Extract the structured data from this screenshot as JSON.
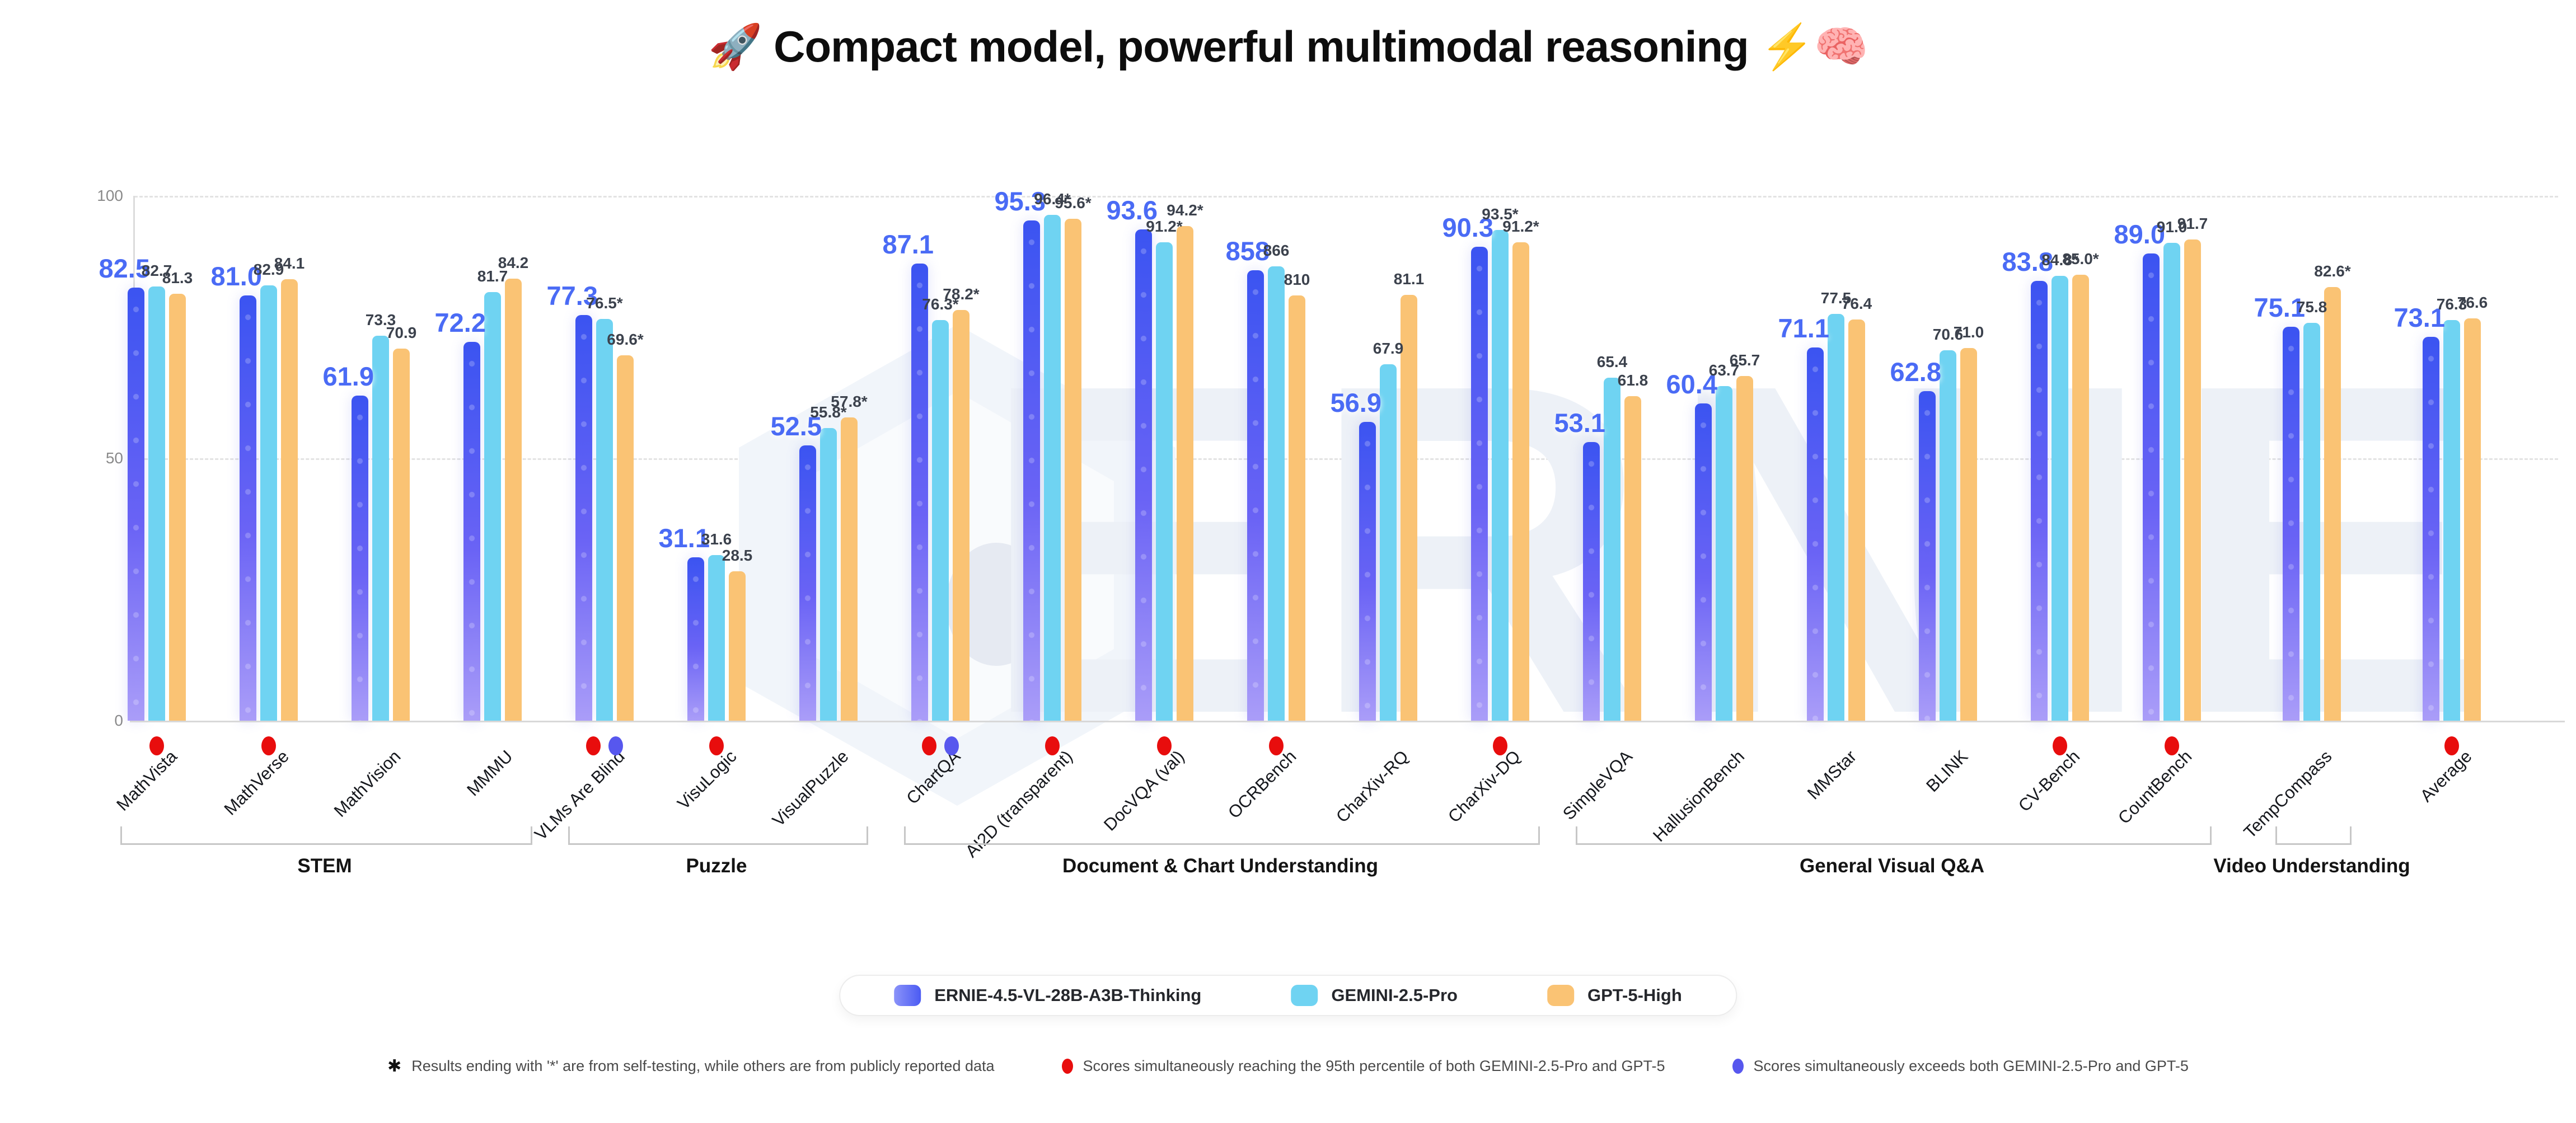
{
  "title": "🚀 Compact model, powerful multimodal reasoning ⚡🧠",
  "watermark": "ERNIE",
  "y_axis": {
    "ticks": [
      "100",
      "50",
      "0"
    ]
  },
  "colors": {
    "ernie_top": "#3B54F1",
    "ernie_bottom": "#AA9DF8",
    "gemini": "#6FD3F2",
    "gpt": "#FAC374",
    "ernie_label": "#4A6BF5",
    "value_label": "#3C424D",
    "marker_red": "#E80D0D",
    "marker_blue": "#5757EE"
  },
  "legend": {
    "items": [
      {
        "label": "ERNIE-4.5-VL-28B-A3B-Thinking",
        "swatch": "ernie-gradient"
      },
      {
        "label": "GEMINI-2.5-Pro",
        "swatch": "#6FD3F2"
      },
      {
        "label": "GPT-5-High",
        "swatch": "#FAC374"
      }
    ]
  },
  "footnotes": [
    {
      "symbol": "asterisk",
      "text": "Results ending with '*' are from self-testing, while others are from publicly reported data"
    },
    {
      "symbol": "red-dot",
      "text": "Scores simultaneously reaching the 95th percentile of both GEMINI-2.5-Pro and GPT-5"
    },
    {
      "symbol": "blue-dot",
      "text": "Scores simultaneously exceeds both GEMINI-2.5-Pro and GPT-5"
    }
  ],
  "chart_data": {
    "type": "bar",
    "title": "🚀 Compact model, powerful multimodal reasoning ⚡🧠",
    "ylabel": "",
    "xlabel": "",
    "ylim": [
      0,
      100
    ],
    "yticks": [
      0,
      50,
      100
    ],
    "grid": "horizontal dashed at 50 and 100",
    "legend_position": "bottom-center",
    "series_names": [
      "ERNIE-4.5-VL-28B-A3B-Thinking",
      "GEMINI-2.5-Pro",
      "GPT-5-High"
    ],
    "marker_legend": {
      "red": "95th percentile of both GEMINI-2.5-Pro and GPT-5",
      "blue": "exceeds both GEMINI-2.5-Pro and GPT-5"
    },
    "groups": [
      {
        "label": "STEM",
        "items": [
          {
            "benchmark": "MathVista",
            "values": [
              "82.5",
              "82.7",
              "81.3"
            ],
            "heights": [
              82.5,
              82.7,
              81.3
            ],
            "markers": [
              "red"
            ]
          },
          {
            "benchmark": "MathVerse",
            "values": [
              "81.0",
              "82.9",
              "84.1"
            ],
            "heights": [
              81.0,
              82.9,
              84.1
            ],
            "markers": [
              "red"
            ]
          },
          {
            "benchmark": "MathVision",
            "values": [
              "61.9",
              "73.3",
              "70.9"
            ],
            "heights": [
              61.9,
              73.3,
              70.9
            ],
            "markers": []
          },
          {
            "benchmark": "MMMU",
            "values": [
              "72.2",
              "81.7",
              "84.2"
            ],
            "heights": [
              72.2,
              81.7,
              84.2
            ],
            "markers": []
          }
        ]
      },
      {
        "label": "Puzzle",
        "items": [
          {
            "benchmark": "VLMs Are Blind",
            "values": [
              "77.3",
              "76.5*",
              "69.6*"
            ],
            "heights": [
              77.3,
              76.5,
              69.6
            ],
            "markers": [
              "red",
              "blue"
            ]
          },
          {
            "benchmark": "VisuLogic",
            "values": [
              "31.1",
              "31.6",
              "28.5"
            ],
            "heights": [
              31.1,
              31.6,
              28.5
            ],
            "markers": [
              "red"
            ]
          },
          {
            "benchmark": "VisualPuzzle",
            "values": [
              "52.5",
              "55.8*",
              "57.8*"
            ],
            "heights": [
              52.5,
              55.8,
              57.8
            ],
            "markers": []
          }
        ]
      },
      {
        "label": "Document & Chart Understanding",
        "items": [
          {
            "benchmark": "ChartQA",
            "values": [
              "87.1",
              "76.3*",
              "78.2*"
            ],
            "heights": [
              87.1,
              76.3,
              78.2
            ],
            "markers": [
              "red",
              "blue"
            ]
          },
          {
            "benchmark": "AI2D (transparent)",
            "values": [
              "95.3",
              "96.4*",
              "95.6*"
            ],
            "heights": [
              95.3,
              96.4,
              95.6
            ],
            "markers": [
              "red"
            ]
          },
          {
            "benchmark": "DocVQA (val)",
            "values": [
              "93.6",
              "91.2*",
              "94.2*"
            ],
            "heights": [
              93.6,
              91.2,
              94.2
            ],
            "markers": [
              "red"
            ]
          },
          {
            "benchmark": "OCRBench",
            "values": [
              "858",
              "866",
              "810"
            ],
            "heights": [
              85.8,
              86.6,
              81.0
            ],
            "markers": [
              "red"
            ]
          },
          {
            "benchmark": "CharXiv-RQ",
            "values": [
              "56.9",
              "67.9",
              "81.1"
            ],
            "heights": [
              56.9,
              67.9,
              81.1
            ],
            "markers": []
          },
          {
            "benchmark": "CharXiv-DQ",
            "values": [
              "90.3",
              "93.5*",
              "91.2*"
            ],
            "heights": [
              90.3,
              93.5,
              91.2
            ],
            "markers": [
              "red"
            ]
          }
        ]
      },
      {
        "label": "General Visual Q&A",
        "items": [
          {
            "benchmark": "SimpleVQA",
            "values": [
              "53.1",
              "65.4",
              "61.8"
            ],
            "heights": [
              53.1,
              65.4,
              61.8
            ],
            "markers": []
          },
          {
            "benchmark": "HallusionBench",
            "values": [
              "60.4",
              "63.7",
              "65.7"
            ],
            "heights": [
              60.4,
              63.7,
              65.7
            ],
            "markers": []
          },
          {
            "benchmark": "MMStar",
            "values": [
              "71.1",
              "77.5",
              "76.4"
            ],
            "heights": [
              71.1,
              77.5,
              76.4
            ],
            "markers": []
          },
          {
            "benchmark": "BLINK",
            "values": [
              "62.8",
              "70.6",
              "71.0"
            ],
            "heights": [
              62.8,
              70.6,
              71.0
            ],
            "markers": []
          },
          {
            "benchmark": "CV-Bench",
            "values": [
              "83.8",
              "84.8*",
              "85.0*"
            ],
            "heights": [
              83.8,
              84.8,
              85.0
            ],
            "markers": [
              "red"
            ]
          },
          {
            "benchmark": "CountBench",
            "values": [
              "89.0",
              "91.0",
              "91.7"
            ],
            "heights": [
              89.0,
              91.0,
              91.7
            ],
            "markers": [
              "red"
            ]
          }
        ]
      },
      {
        "label": "Video Understanding",
        "items": [
          {
            "benchmark": "TempCompass",
            "values": [
              "75.1",
              "75.8",
              "82.6*"
            ],
            "heights": [
              75.1,
              75.8,
              82.6
            ],
            "markers": []
          }
        ]
      },
      {
        "label": "",
        "items": [
          {
            "benchmark": "Average",
            "values": [
              "73.1",
              "76.3",
              "76.6"
            ],
            "heights": [
              73.1,
              76.3,
              76.6
            ],
            "markers": [
              "red"
            ]
          }
        ]
      }
    ]
  }
}
